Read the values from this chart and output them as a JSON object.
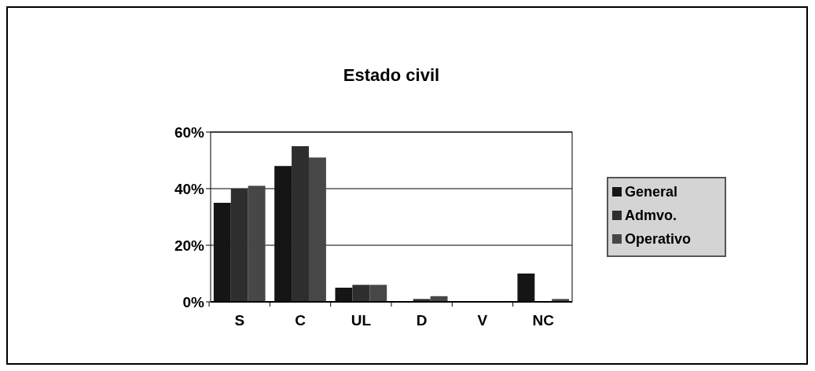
{
  "chart_data": {
    "type": "bar",
    "title": "Estado civil",
    "categories": [
      "S",
      "C",
      "UL",
      "D",
      "V",
      "NC"
    ],
    "series": [
      {
        "name": "General",
        "color": "#151515",
        "values": [
          35,
          48,
          5,
          0,
          0,
          10
        ]
      },
      {
        "name": "Admvo.",
        "color": "#2e2e2e",
        "values": [
          40,
          55,
          6,
          1,
          0,
          0
        ]
      },
      {
        "name": "Operativo",
        "color": "#474747",
        "values": [
          41,
          51,
          6,
          2,
          0,
          1
        ]
      }
    ],
    "ylim": [
      0,
      60
    ],
    "yticks": [
      {
        "value": 0,
        "label": "0%"
      },
      {
        "value": 20,
        "label": "20%"
      },
      {
        "value": 40,
        "label": "40%"
      },
      {
        "value": 60,
        "label": "60%"
      }
    ],
    "grid": "y",
    "legend": "right"
  }
}
